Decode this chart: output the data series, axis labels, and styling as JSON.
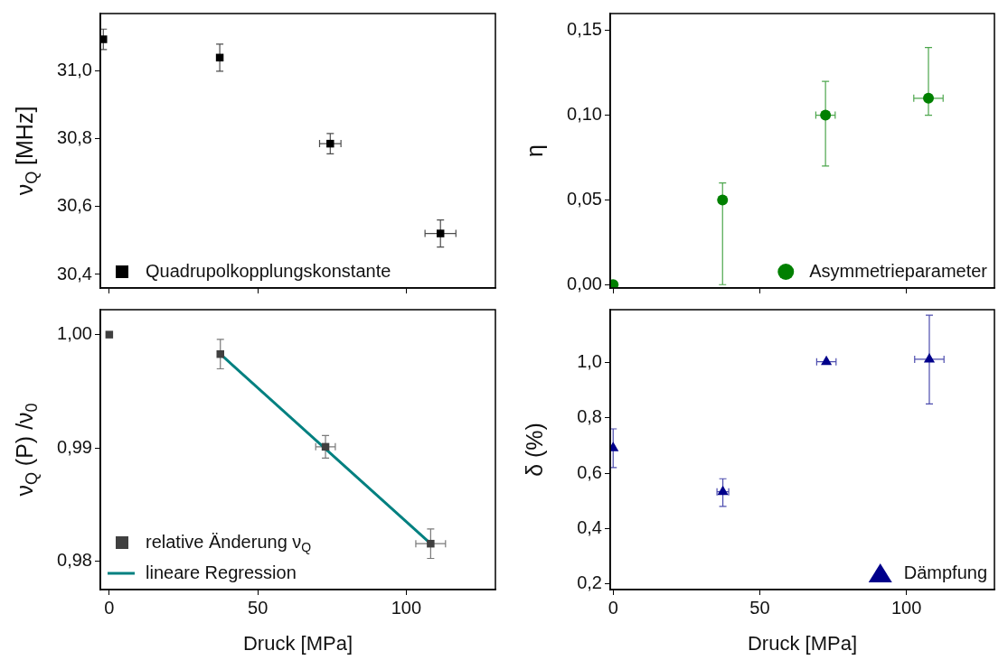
{
  "chart_data": [
    {
      "type": "scatter",
      "ylabel": "ν$_{Q}$ [MHz]",
      "xlim": [
        -3,
        130
      ],
      "xticks": [
        0,
        50,
        100
      ],
      "ylim": [
        30.36,
        31.17
      ],
      "yticks": [
        {
          "value": 30.4,
          "label": "30,4"
        },
        {
          "value": 30.6,
          "label": "30,6"
        },
        {
          "value": 30.8,
          "label": "30,8"
        },
        {
          "value": 31.0,
          "label": "31,0"
        }
      ],
      "tick_labels": "y",
      "marker": "square",
      "legend": "bottom left",
      "series": [
        {
          "name": "Quadrupolkopplungskonstante",
          "color": "#000000",
          "x": [
            -2,
            37.2,
            74.4,
            111.5
          ],
          "values": [
            31.094,
            31.04,
            30.786,
            30.521
          ],
          "errors": [
            0.03,
            0.04,
            0.03,
            0.04
          ],
          "xerrors": [
            null,
            null,
            3.6,
            5.2
          ]
        }
      ]
    },
    {
      "type": "scatter",
      "ylabel": "η",
      "xlim": [
        -1,
        130
      ],
      "xticks": [
        0,
        50,
        100
      ],
      "ylim": [
        -0.002,
        0.16
      ],
      "yticks": [
        {
          "value": 0,
          "label": "0,00"
        },
        {
          "value": 0.05,
          "label": "0,05"
        },
        {
          "value": 0.1,
          "label": "0,10"
        },
        {
          "value": 0.15,
          "label": "0,15"
        }
      ],
      "tick_labels": "y",
      "marker": "circle",
      "legend": "bottom right",
      "series": [
        {
          "name": "Asymmetrieparameter",
          "color": "#008000",
          "x": [
            0,
            37.3,
            72.4,
            107.5
          ],
          "values": [
            0,
            0.05,
            0.1,
            0.11
          ],
          "errors": [
            null,
            [
              0,
              0.06
            ],
            [
              0.07,
              0.12
            ],
            [
              0.1,
              0.14
            ]
          ],
          "xerrors": [
            null,
            null,
            3.3,
            5
          ]
        }
      ]
    },
    {
      "type": "scatter",
      "ylabel": "ν$_{Q}$ (P) /ν$_{0}$",
      "xlabel": "Druck [MPa]",
      "xlim": [
        -3,
        130
      ],
      "xticks": [
        0,
        50,
        100
      ],
      "ylim": [
        0.9775,
        1.0022
      ],
      "yticks": [
        {
          "value": 0.98,
          "label": "0,98"
        },
        {
          "value": 0.99,
          "label": "0,99"
        },
        {
          "value": 1.0,
          "label": "1,00"
        }
      ],
      "marker": "square",
      "legend": "bottom left",
      "series": [
        {
          "name": "relative Änderung ν$_{Q}$",
          "color": "#404040",
          "x": [
            0,
            37.4,
            72.8,
            108.2
          ],
          "values": [
            1.0,
            0.99828,
            0.9901,
            0.98155
          ],
          "errors": [
            null,
            0.0013,
            0.001,
            0.0013
          ],
          "xerrors": [
            null,
            null,
            3.3,
            5
          ]
        },
        {
          "name": "lineare Regression",
          "type": "line",
          "marker": "none",
          "color": "#008080",
          "x": [
            37.4,
            108.2
          ],
          "values": [
            0.99828,
            0.98155
          ]
        }
      ]
    },
    {
      "type": "scatter",
      "ylabel": "δ (%)",
      "xlabel": "Druck [MPa]",
      "xlim": [
        -1,
        130
      ],
      "xticks": [
        0,
        50,
        100
      ],
      "ylim": [
        0.18,
        1.19
      ],
      "yticks": [
        {
          "value": 0.2,
          "label": "0,2"
        },
        {
          "value": 0.4,
          "label": "0,4"
        },
        {
          "value": 0.6,
          "label": "0,6"
        },
        {
          "value": 0.8,
          "label": "0,8"
        },
        {
          "value": 1.0,
          "label": "1,0"
        }
      ],
      "marker": "triangle",
      "legend": "bottom right",
      "series": [
        {
          "name": "Dämpfung",
          "color": "#00008b",
          "x": [
            0,
            37.4,
            72.7,
            107.8
          ],
          "values": [
            0.691,
            0.533,
            1.002,
            1.011
          ],
          "errors": [
            [
              0.62,
              0.76
            ],
            [
              0.48,
              0.58
            ],
            null,
            [
              0.85,
              1.17
            ]
          ],
          "xerrors": [
            null,
            2,
            3.3,
            5
          ]
        }
      ]
    }
  ]
}
